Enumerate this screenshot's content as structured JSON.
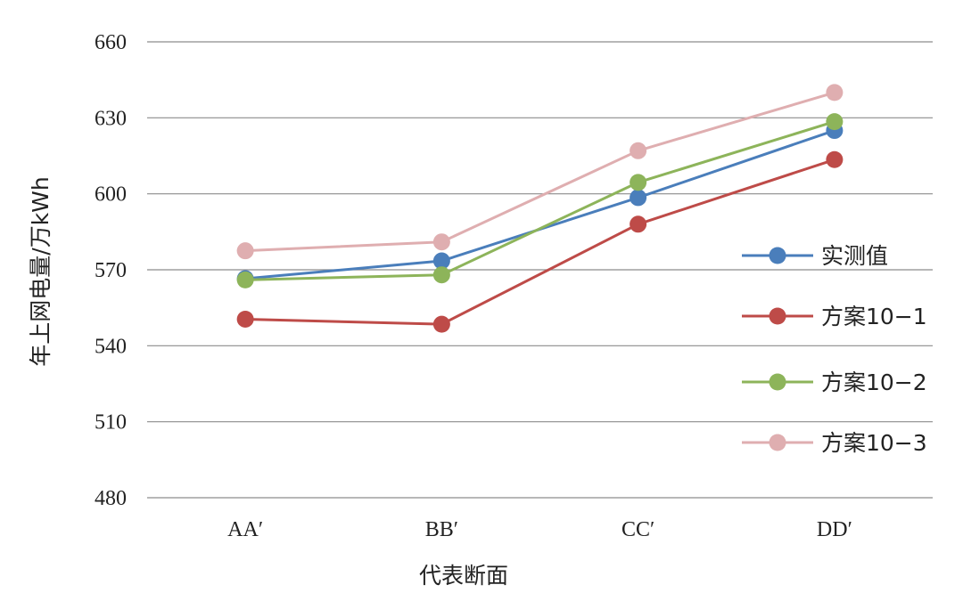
{
  "chart_data": {
    "type": "line",
    "title": "",
    "xlabel": "代表断面",
    "ylabel": "年上网电量/万kWh",
    "categories": [
      "AA′",
      "BB′",
      "CC′",
      "DD′"
    ],
    "yticks": [
      "660",
      "630",
      "600",
      "570",
      "540",
      "510",
      "480"
    ],
    "ylim": [
      480,
      660
    ],
    "grid": true,
    "legend_position": "right",
    "series": [
      {
        "name": "实测值",
        "color": "#4a7ebb",
        "values": [
          566.5,
          573.5,
          598.5,
          625
        ]
      },
      {
        "name": "方案10−1",
        "color": "#be4b48",
        "values": [
          550.5,
          548.5,
          588,
          613.5
        ]
      },
      {
        "name": "方案10−2",
        "color": "#8db45a",
        "values": [
          566,
          568,
          604.5,
          628.5
        ]
      },
      {
        "name": "方案10−3",
        "color": "#dfaeb0",
        "values": [
          577.5,
          581,
          617,
          640
        ]
      }
    ]
  }
}
